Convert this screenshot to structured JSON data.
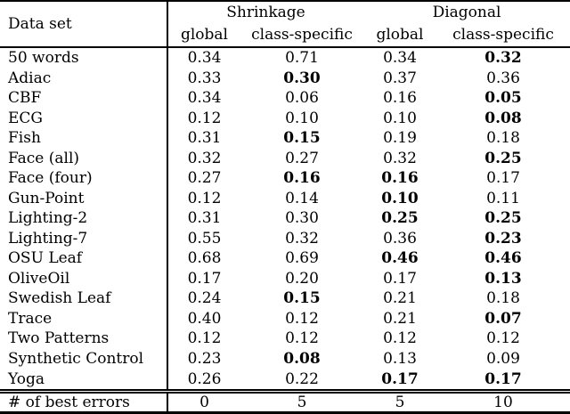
{
  "colors": {
    "text": "#000000",
    "background": "#ffffff",
    "border": "#000000"
  },
  "table": {
    "col1_header": "Data set",
    "group_headers": [
      "Shrinkage",
      "Diagonal"
    ],
    "sub_headers": [
      "global",
      "class-specific",
      "global",
      "class-specific"
    ],
    "rows": [
      {
        "name": "50 words",
        "values": [
          "0.34",
          "0.71",
          "0.34",
          "0.32"
        ],
        "bold": [
          false,
          false,
          false,
          true
        ]
      },
      {
        "name": "Adiac",
        "values": [
          "0.33",
          "0.30",
          "0.37",
          "0.36"
        ],
        "bold": [
          false,
          true,
          false,
          false
        ]
      },
      {
        "name": "CBF",
        "values": [
          "0.34",
          "0.06",
          "0.16",
          "0.05"
        ],
        "bold": [
          false,
          false,
          false,
          true
        ]
      },
      {
        "name": "ECG",
        "values": [
          "0.12",
          "0.10",
          "0.10",
          "0.08"
        ],
        "bold": [
          false,
          false,
          false,
          true
        ]
      },
      {
        "name": "Fish",
        "values": [
          "0.31",
          "0.15",
          "0.19",
          "0.18"
        ],
        "bold": [
          false,
          true,
          false,
          false
        ]
      },
      {
        "name": "Face (all)",
        "values": [
          "0.32",
          "0.27",
          "0.32",
          "0.25"
        ],
        "bold": [
          false,
          false,
          false,
          true
        ]
      },
      {
        "name": "Face (four)",
        "values": [
          "0.27",
          "0.16",
          "0.16",
          "0.17"
        ],
        "bold": [
          false,
          true,
          true,
          false
        ]
      },
      {
        "name": "Gun-Point",
        "values": [
          "0.12",
          "0.14",
          "0.10",
          "0.11"
        ],
        "bold": [
          false,
          false,
          true,
          false
        ]
      },
      {
        "name": "Lighting-2",
        "values": [
          "0.31",
          "0.30",
          "0.25",
          "0.25"
        ],
        "bold": [
          false,
          false,
          true,
          true
        ]
      },
      {
        "name": "Lighting-7",
        "values": [
          "0.55",
          "0.32",
          "0.36",
          "0.23"
        ],
        "bold": [
          false,
          false,
          false,
          true
        ]
      },
      {
        "name": "OSU Leaf",
        "values": [
          "0.68",
          "0.69",
          "0.46",
          "0.46"
        ],
        "bold": [
          false,
          false,
          true,
          true
        ]
      },
      {
        "name": "OliveOil",
        "values": [
          "0.17",
          "0.20",
          "0.17",
          "0.13"
        ],
        "bold": [
          false,
          false,
          false,
          true
        ]
      },
      {
        "name": "Swedish Leaf",
        "values": [
          "0.24",
          "0.15",
          "0.21",
          "0.18"
        ],
        "bold": [
          false,
          true,
          false,
          false
        ]
      },
      {
        "name": "Trace",
        "values": [
          "0.40",
          "0.12",
          "0.21",
          "0.07"
        ],
        "bold": [
          false,
          false,
          false,
          true
        ]
      },
      {
        "name": "Two Patterns",
        "values": [
          "0.12",
          "0.12",
          "0.12",
          "0.12"
        ],
        "bold": [
          false,
          false,
          false,
          false
        ]
      },
      {
        "name": "Synthetic Control",
        "values": [
          "0.23",
          "0.08",
          "0.13",
          "0.09"
        ],
        "bold": [
          false,
          true,
          false,
          false
        ]
      },
      {
        "name": "Yoga",
        "values": [
          "0.26",
          "0.22",
          "0.17",
          "0.17"
        ],
        "bold": [
          false,
          false,
          true,
          true
        ]
      }
    ],
    "summary": {
      "name": "# of best errors",
      "values": [
        "0",
        "5",
        "5",
        "10"
      ]
    }
  }
}
